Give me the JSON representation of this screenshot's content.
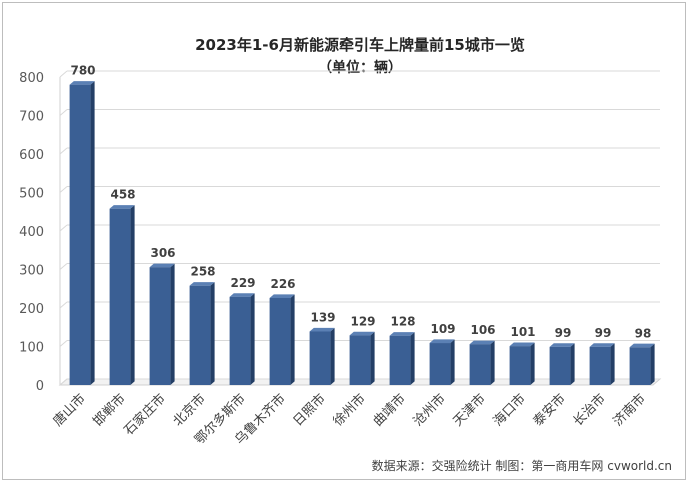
{
  "chart_data": {
    "type": "bar",
    "title": "2023年1-6月新能源牵引车上牌量前15城市一览",
    "subtitle": "（单位：辆）",
    "categories": [
      "唐山市",
      "邯郸市",
      "石家庄市",
      "北京市",
      "鄂尔多斯市",
      "乌鲁木齐市",
      "日照市",
      "徐州市",
      "曲靖市",
      "沧州市",
      "天津市",
      "海口市",
      "泰安市",
      "长治市",
      "济南市"
    ],
    "values": [
      780,
      458,
      306,
      258,
      229,
      226,
      139,
      129,
      128,
      109,
      106,
      101,
      99,
      99,
      98
    ],
    "ylim": [
      0,
      800
    ],
    "yticks": [
      "0",
      "100",
      "200",
      "300",
      "400",
      "500",
      "600",
      "700",
      "800"
    ],
    "grid": true,
    "legend": "none",
    "bar_color": "#3a5f94",
    "bar_side_color": "#243f66",
    "bar_top_color": "#5b80b4",
    "source": "数据来源：交强险统计 制图：第一商用车网 cvworld.cn"
  }
}
